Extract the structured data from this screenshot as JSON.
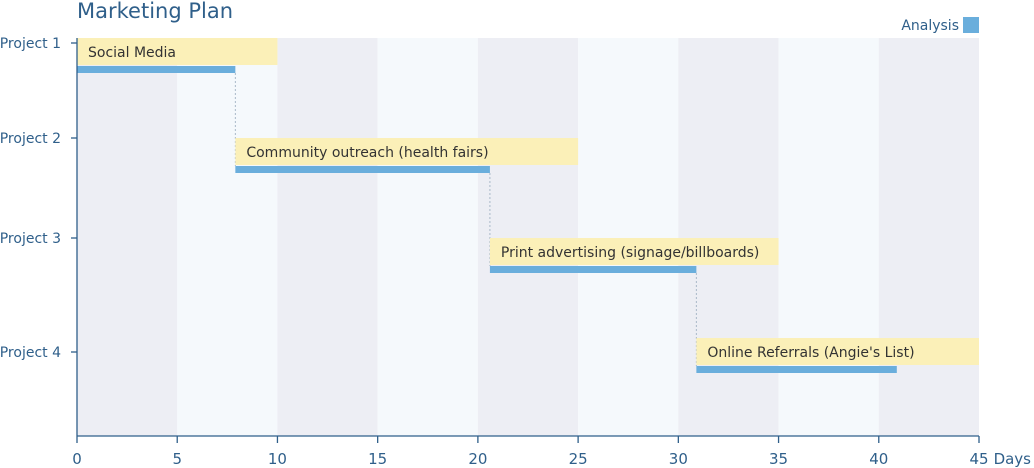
{
  "chart_data": {
    "type": "bar",
    "subtype": "gantt",
    "title": "Marketing Plan",
    "xlabel": "Days",
    "xlim": [
      0,
      45
    ],
    "x_ticks": [
      0,
      5,
      10,
      15,
      20,
      25,
      30,
      35,
      40,
      45
    ],
    "categories": [
      "Project 1",
      "Project 2",
      "Project 3",
      "Project 4"
    ],
    "legend": {
      "position": "top-right",
      "entries": [
        {
          "name": "Analysis",
          "color": "#6aaedc"
        }
      ]
    },
    "tasks": [
      {
        "category": "Project 1",
        "label": "Social Media",
        "label_start": 0,
        "label_end": 10,
        "analysis_start": 0,
        "analysis_end": 7.9
      },
      {
        "category": "Project 2",
        "label": "Community outreach (health fairs)",
        "label_start": 7.9,
        "label_end": 25,
        "analysis_start": 7.9,
        "analysis_end": 20.6
      },
      {
        "category": "Project 3",
        "label": "Print advertising (signage/billboards)",
        "label_start": 20.6,
        "label_end": 35,
        "analysis_start": 20.6,
        "analysis_end": 30.9
      },
      {
        "category": "Project 4",
        "label": "Online Referrals (Angie's List)",
        "label_start": 30.9,
        "label_end": 45,
        "analysis_start": 30.9,
        "analysis_end": 40.9
      }
    ],
    "colors": {
      "band_dark": "#edeef4",
      "band_light": "#f5f9fc",
      "label_box": "#fbf0b8",
      "analysis": "#6aaedc",
      "axis": "#2f5f8a",
      "connector": "#a9b8c8"
    }
  }
}
